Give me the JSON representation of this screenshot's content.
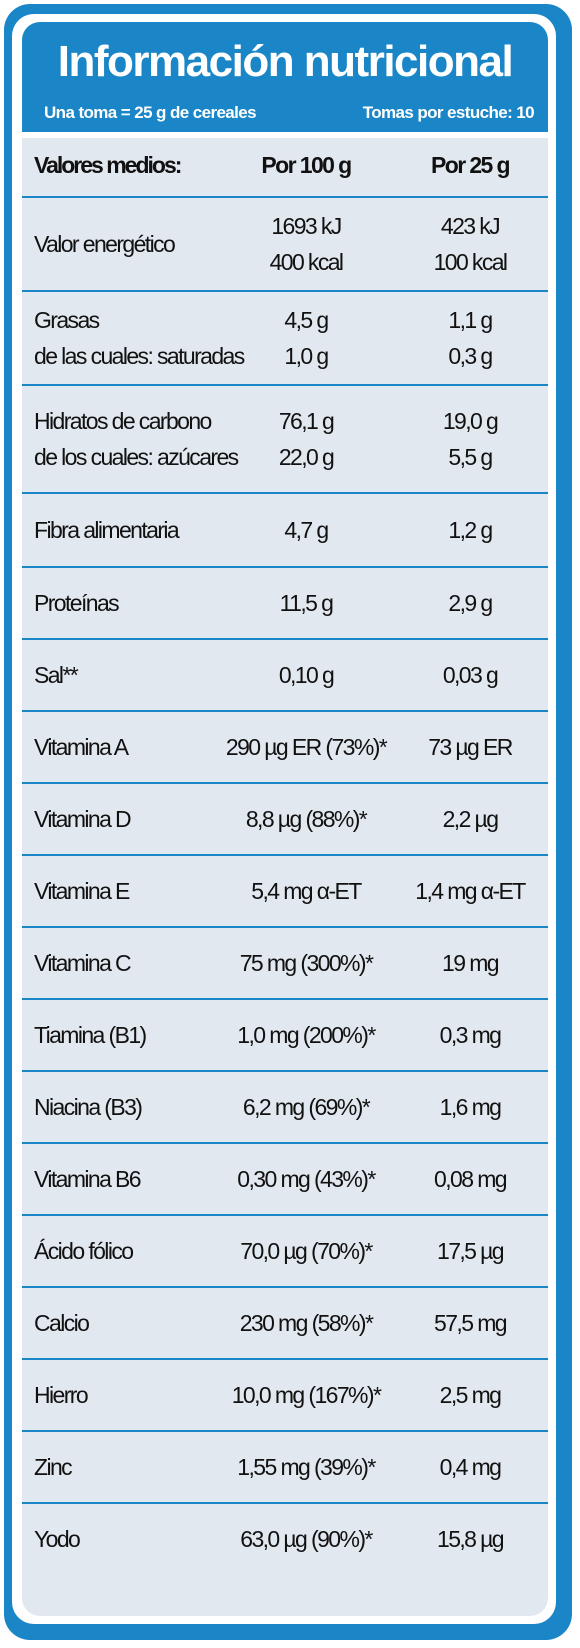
{
  "title": "Información nutricional",
  "subtitle_left": "Una toma = 25 g de cereales",
  "subtitle_right": "Tomas por estuche: 10",
  "columns": [
    "Valores medios:",
    "Por 100 g",
    "Por 25 g"
  ],
  "rows": [
    {
      "name": [
        "Valor energético"
      ],
      "per100": [
        "1693 kJ",
        "400 kcal"
      ],
      "per25": [
        "423 kJ",
        "100 kcal"
      ]
    },
    {
      "name": [
        "Grasas",
        "de las cuales: saturadas"
      ],
      "per100": [
        "4,5 g",
        "1,0 g"
      ],
      "per25": [
        "1,1 g",
        "0,3 g"
      ]
    },
    {
      "name": [
        "Hidratos de carbono",
        "de los cuales: azúcares"
      ],
      "per100": [
        "76,1 g",
        "22,0 g"
      ],
      "per25": [
        "19,0 g",
        "5,5 g"
      ]
    },
    {
      "name": [
        "Fibra alimentaria"
      ],
      "per100": [
        "4,7 g"
      ],
      "per25": [
        "1,2 g"
      ]
    },
    {
      "name": [
        "Proteínas"
      ],
      "per100": [
        "11,5 g"
      ],
      "per25": [
        "2,9 g"
      ]
    },
    {
      "name": [
        "Sal**"
      ],
      "per100": [
        "0,10 g"
      ],
      "per25": [
        "0,03 g"
      ]
    },
    {
      "name": [
        "Vitamina A"
      ],
      "per100": [
        "290 µg ER (73%)*"
      ],
      "per25": [
        "73 µg ER"
      ]
    },
    {
      "name": [
        "Vitamina D"
      ],
      "per100": [
        "8,8 µg (88%)*"
      ],
      "per25": [
        "2,2 µg"
      ]
    },
    {
      "name": [
        "Vitamina E"
      ],
      "per100": [
        "5,4 mg  α-ET"
      ],
      "per25": [
        "1,4 mg α-ET"
      ]
    },
    {
      "name": [
        "Vitamina C"
      ],
      "per100": [
        "75 mg (300%)*"
      ],
      "per25": [
        "19 mg"
      ]
    },
    {
      "name": [
        "Tiamina (B1)"
      ],
      "per100": [
        "1,0 mg (200%)*"
      ],
      "per25": [
        "0,3 mg"
      ]
    },
    {
      "name": [
        "Niacina (B3)"
      ],
      "per100": [
        "6,2 mg (69%)*"
      ],
      "per25": [
        "1,6 mg"
      ]
    },
    {
      "name": [
        "Vitamina B6"
      ],
      "per100": [
        "0,30 mg (43%)*"
      ],
      "per25": [
        "0,08 mg"
      ]
    },
    {
      "name": [
        "Ácido fólico"
      ],
      "per100": [
        "70,0 µg (70%)*"
      ],
      "per25": [
        "17,5 µg"
      ]
    },
    {
      "name": [
        "Calcio"
      ],
      "per100": [
        "230 mg (58%)*"
      ],
      "per25": [
        "57,5 mg"
      ]
    },
    {
      "name": [
        "Hierro"
      ],
      "per100": [
        "10,0 mg (167%)*"
      ],
      "per25": [
        "2,5 mg"
      ]
    },
    {
      "name": [
        "Zinc"
      ],
      "per100": [
        "1,55 mg (39%)*"
      ],
      "per25": [
        "0,4 mg"
      ]
    },
    {
      "name": [
        "Yodo"
      ],
      "per100": [
        "63,0 µg (90%)*"
      ],
      "per25": [
        "15,8 µg"
      ]
    }
  ],
  "colors": {
    "brand_blue": "#1a86c7",
    "row_bg": "#e2e8ef",
    "text": "#111111"
  }
}
